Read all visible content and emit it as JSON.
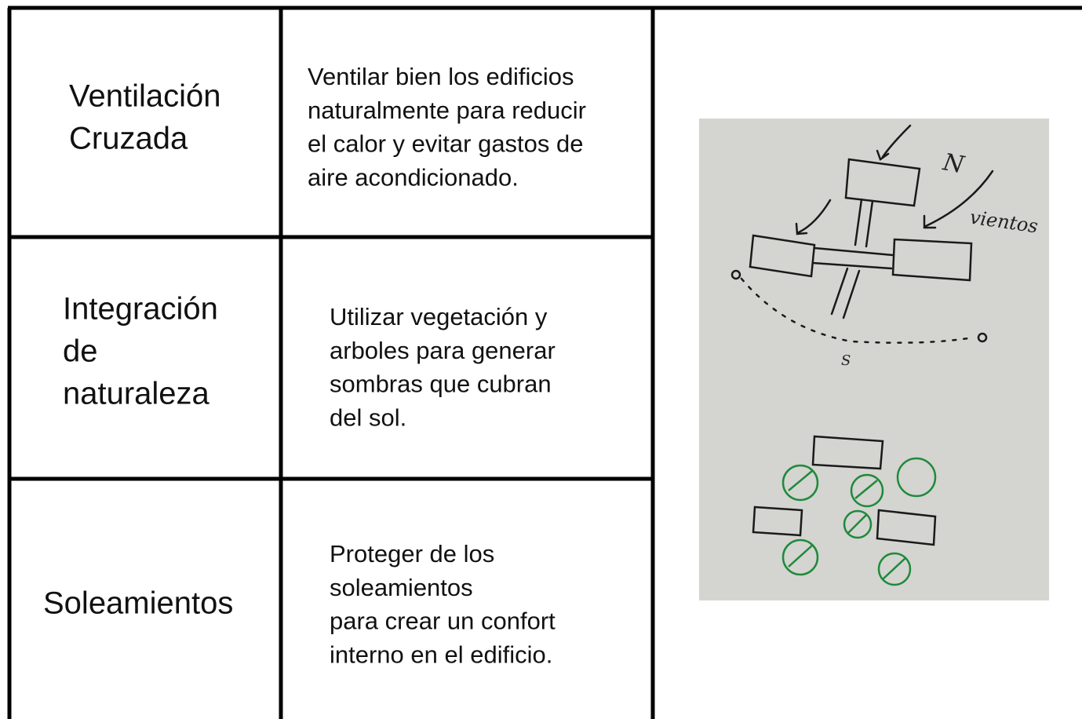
{
  "table": {
    "rows": [
      {
        "label": [
          "Ventilación",
          "Cruzada"
        ],
        "description": [
          "Ventilar bien los edificios",
          "naturalmente para reducir",
          "el calor y evitar gastos de",
          "aire acondicionado."
        ]
      },
      {
        "label": [
          "Integración",
          "de",
          "naturaleza"
        ],
        "description": [
          "Utilizar vegetación y",
          "arboles para generar",
          "sombras que cubran",
          "del sol."
        ]
      },
      {
        "label": [
          "Soleamientos"
        ],
        "description": [
          "Proteger de los",
          "soleamientos",
          "para crear un confort",
          "interno en el edificio."
        ]
      }
    ]
  },
  "sketch": {
    "labels": [
      "N",
      "vientos",
      "S"
    ]
  }
}
